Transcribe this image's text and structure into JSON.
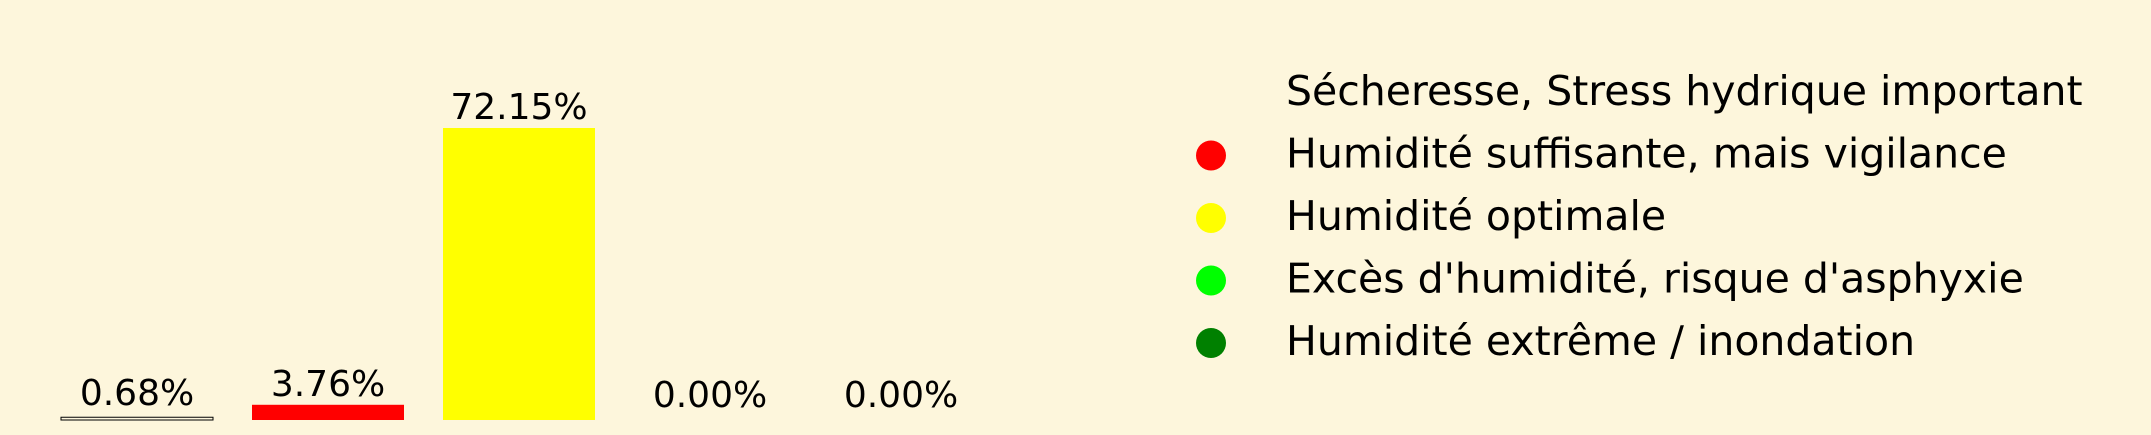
{
  "chart_data": {
    "type": "bar",
    "title": "",
    "xlabel": "",
    "ylabel": "",
    "ylim": [
      0,
      100
    ],
    "grid": false,
    "legend_position": "right",
    "categories": [
      "Sécheresse, Stress hydrique important",
      "Humidité suffisante, mais vigilance",
      "Humidité optimale",
      "Excès d'humidité, risque d'asphyxie",
      "Humidité extrême / inondation"
    ],
    "values": [
      0.68,
      3.76,
      72.15,
      0.0,
      0.0
    ],
    "value_labels": [
      "0.68%",
      "3.76%",
      "72.15%",
      "0.00%",
      "0.00%"
    ],
    "colors": [
      "#fdf6dc",
      "#ff0000",
      "#ffff00",
      "#00ff00",
      "#008000"
    ],
    "legend": [
      {
        "label": "Sécheresse, Stress hydrique important",
        "color": "#fdf6dc"
      },
      {
        "label": "Humidité suffisante, mais vigilance",
        "color": "#ff0000"
      },
      {
        "label": "Humidité optimale",
        "color": "#ffff00"
      },
      {
        "label": "Excès d'humidité, risque d'asphyxie",
        "color": "#00ff00"
      },
      {
        "label": "Humidité extrême / inondation",
        "color": "#008000"
      }
    ]
  }
}
